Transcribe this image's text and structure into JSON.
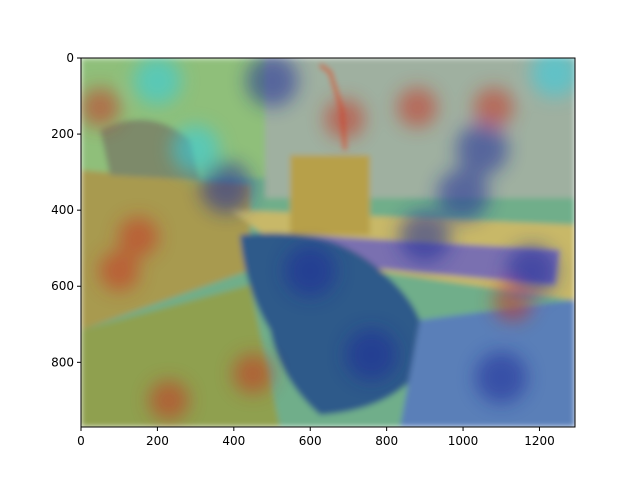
{
  "chart_data": {
    "type": "heatmap",
    "title": "",
    "xlabel": "",
    "ylabel": "",
    "xlim": [
      0,
      1293
    ],
    "ylim": [
      970,
      0
    ],
    "x_ticks": [
      0,
      200,
      400,
      600,
      800,
      1000,
      1200
    ],
    "y_ticks": [
      0,
      200,
      400,
      600,
      800
    ],
    "x_tick_labels": [
      "0",
      "200",
      "400",
      "600",
      "800",
      "1000",
      "1200"
    ],
    "y_tick_labels": [
      "0",
      "200",
      "400",
      "600",
      "800"
    ],
    "grid": false,
    "legend": "none",
    "colormap": "jet",
    "overlay_alpha": 0.45,
    "background": "photo of a room interior with a couch, a dark armchair in the foreground and a desk with a keyboard; a colored saliency/attention heatmap is overlaid",
    "colors": {
      "low": "#1a2a9a",
      "mid_low": "#2fd0e6",
      "mid": "#c8d84a",
      "mid_high": "#e8a030",
      "high": "#c83020"
    },
    "hotspots": [
      {
        "x": 50,
        "y": 130,
        "level": "high"
      },
      {
        "x": 150,
        "y": 470,
        "level": "high"
      },
      {
        "x": 100,
        "y": 560,
        "level": "high"
      },
      {
        "x": 230,
        "y": 900,
        "level": "high"
      },
      {
        "x": 450,
        "y": 830,
        "level": "high"
      },
      {
        "x": 1130,
        "y": 640,
        "level": "high"
      },
      {
        "x": 690,
        "y": 160,
        "level": "high"
      },
      {
        "x": 880,
        "y": 130,
        "level": "high"
      },
      {
        "x": 1080,
        "y": 130,
        "level": "high"
      },
      {
        "x": 760,
        "y": 780,
        "level": "low"
      },
      {
        "x": 600,
        "y": 560,
        "level": "low"
      },
      {
        "x": 900,
        "y": 470,
        "level": "low"
      },
      {
        "x": 1180,
        "y": 560,
        "level": "low"
      },
      {
        "x": 1050,
        "y": 240,
        "level": "low"
      },
      {
        "x": 500,
        "y": 60,
        "level": "low"
      },
      {
        "x": 1100,
        "y": 840,
        "level": "low"
      },
      {
        "x": 380,
        "y": 340,
        "level": "low"
      },
      {
        "x": 200,
        "y": 60,
        "level": "mid_low"
      },
      {
        "x": 300,
        "y": 240,
        "level": "mid_low"
      },
      {
        "x": 1240,
        "y": 40,
        "level": "mid_low"
      },
      {
        "x": 1000,
        "y": 360,
        "level": "low"
      }
    ]
  }
}
